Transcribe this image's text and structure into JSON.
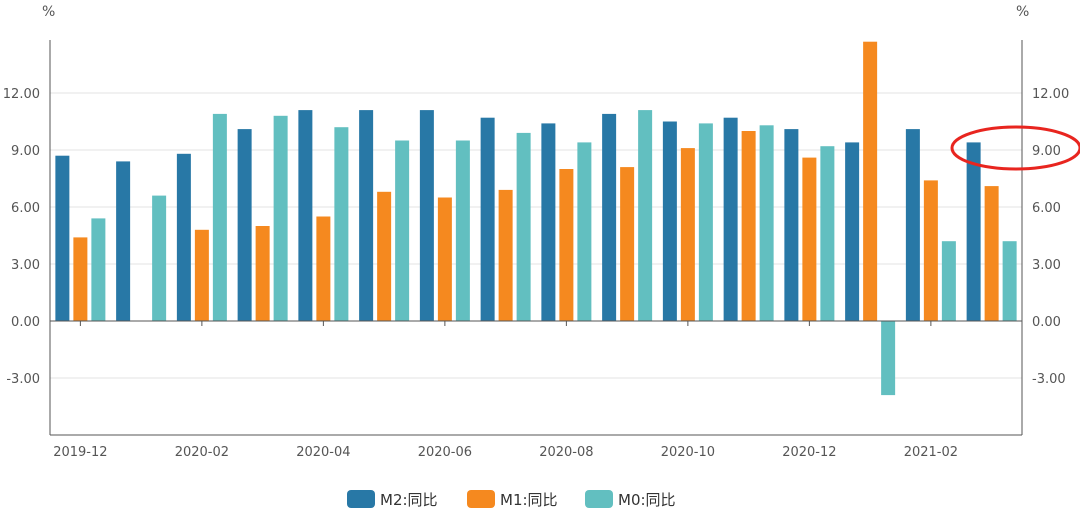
{
  "chart_data": {
    "type": "bar",
    "left_unit": "%",
    "right_unit": "%",
    "y_ticks": [
      "-3.00",
      "0.00",
      "3.00",
      "6.00",
      "9.00",
      "12.00"
    ],
    "ylim": [
      -6,
      15
    ],
    "x_tick_labels": [
      "2019-12",
      "2020-02",
      "2020-04",
      "2020-06",
      "2020-08",
      "2020-10",
      "2020-12",
      "2021-02"
    ],
    "categories": [
      "2019-12",
      "2020-01",
      "2020-02",
      "2020-03",
      "2020-04",
      "2020-05",
      "2020-06",
      "2020-07",
      "2020-08",
      "2020-09",
      "2020-10",
      "2020-11",
      "2020-12",
      "2021-01",
      "2021-02",
      "2021-03"
    ],
    "series": [
      {
        "name": "M2:同比",
        "color": "#2878a6",
        "values": [
          8.7,
          8.4,
          8.8,
          10.1,
          11.1,
          11.1,
          11.1,
          10.7,
          10.4,
          10.9,
          10.5,
          10.7,
          10.1,
          9.4,
          10.1,
          9.4
        ]
      },
      {
        "name": "M1:同比",
        "color": "#f5891f",
        "values": [
          4.4,
          null,
          4.8,
          5.0,
          5.5,
          6.8,
          6.5,
          6.9,
          8.0,
          8.1,
          9.1,
          10.0,
          8.6,
          14.7,
          7.4,
          7.1
        ]
      },
      {
        "name": "M0:同比",
        "color": "#62bfc0",
        "values": [
          5.4,
          6.6,
          10.9,
          10.8,
          10.2,
          9.5,
          9.5,
          9.9,
          9.4,
          11.1,
          10.4,
          10.3,
          9.2,
          -3.9,
          4.2,
          4.2
        ]
      }
    ],
    "legend_position": "bottom-center",
    "grid": true,
    "annotation": {
      "type": "red-ellipse",
      "target": "right-axis-9.00"
    }
  }
}
